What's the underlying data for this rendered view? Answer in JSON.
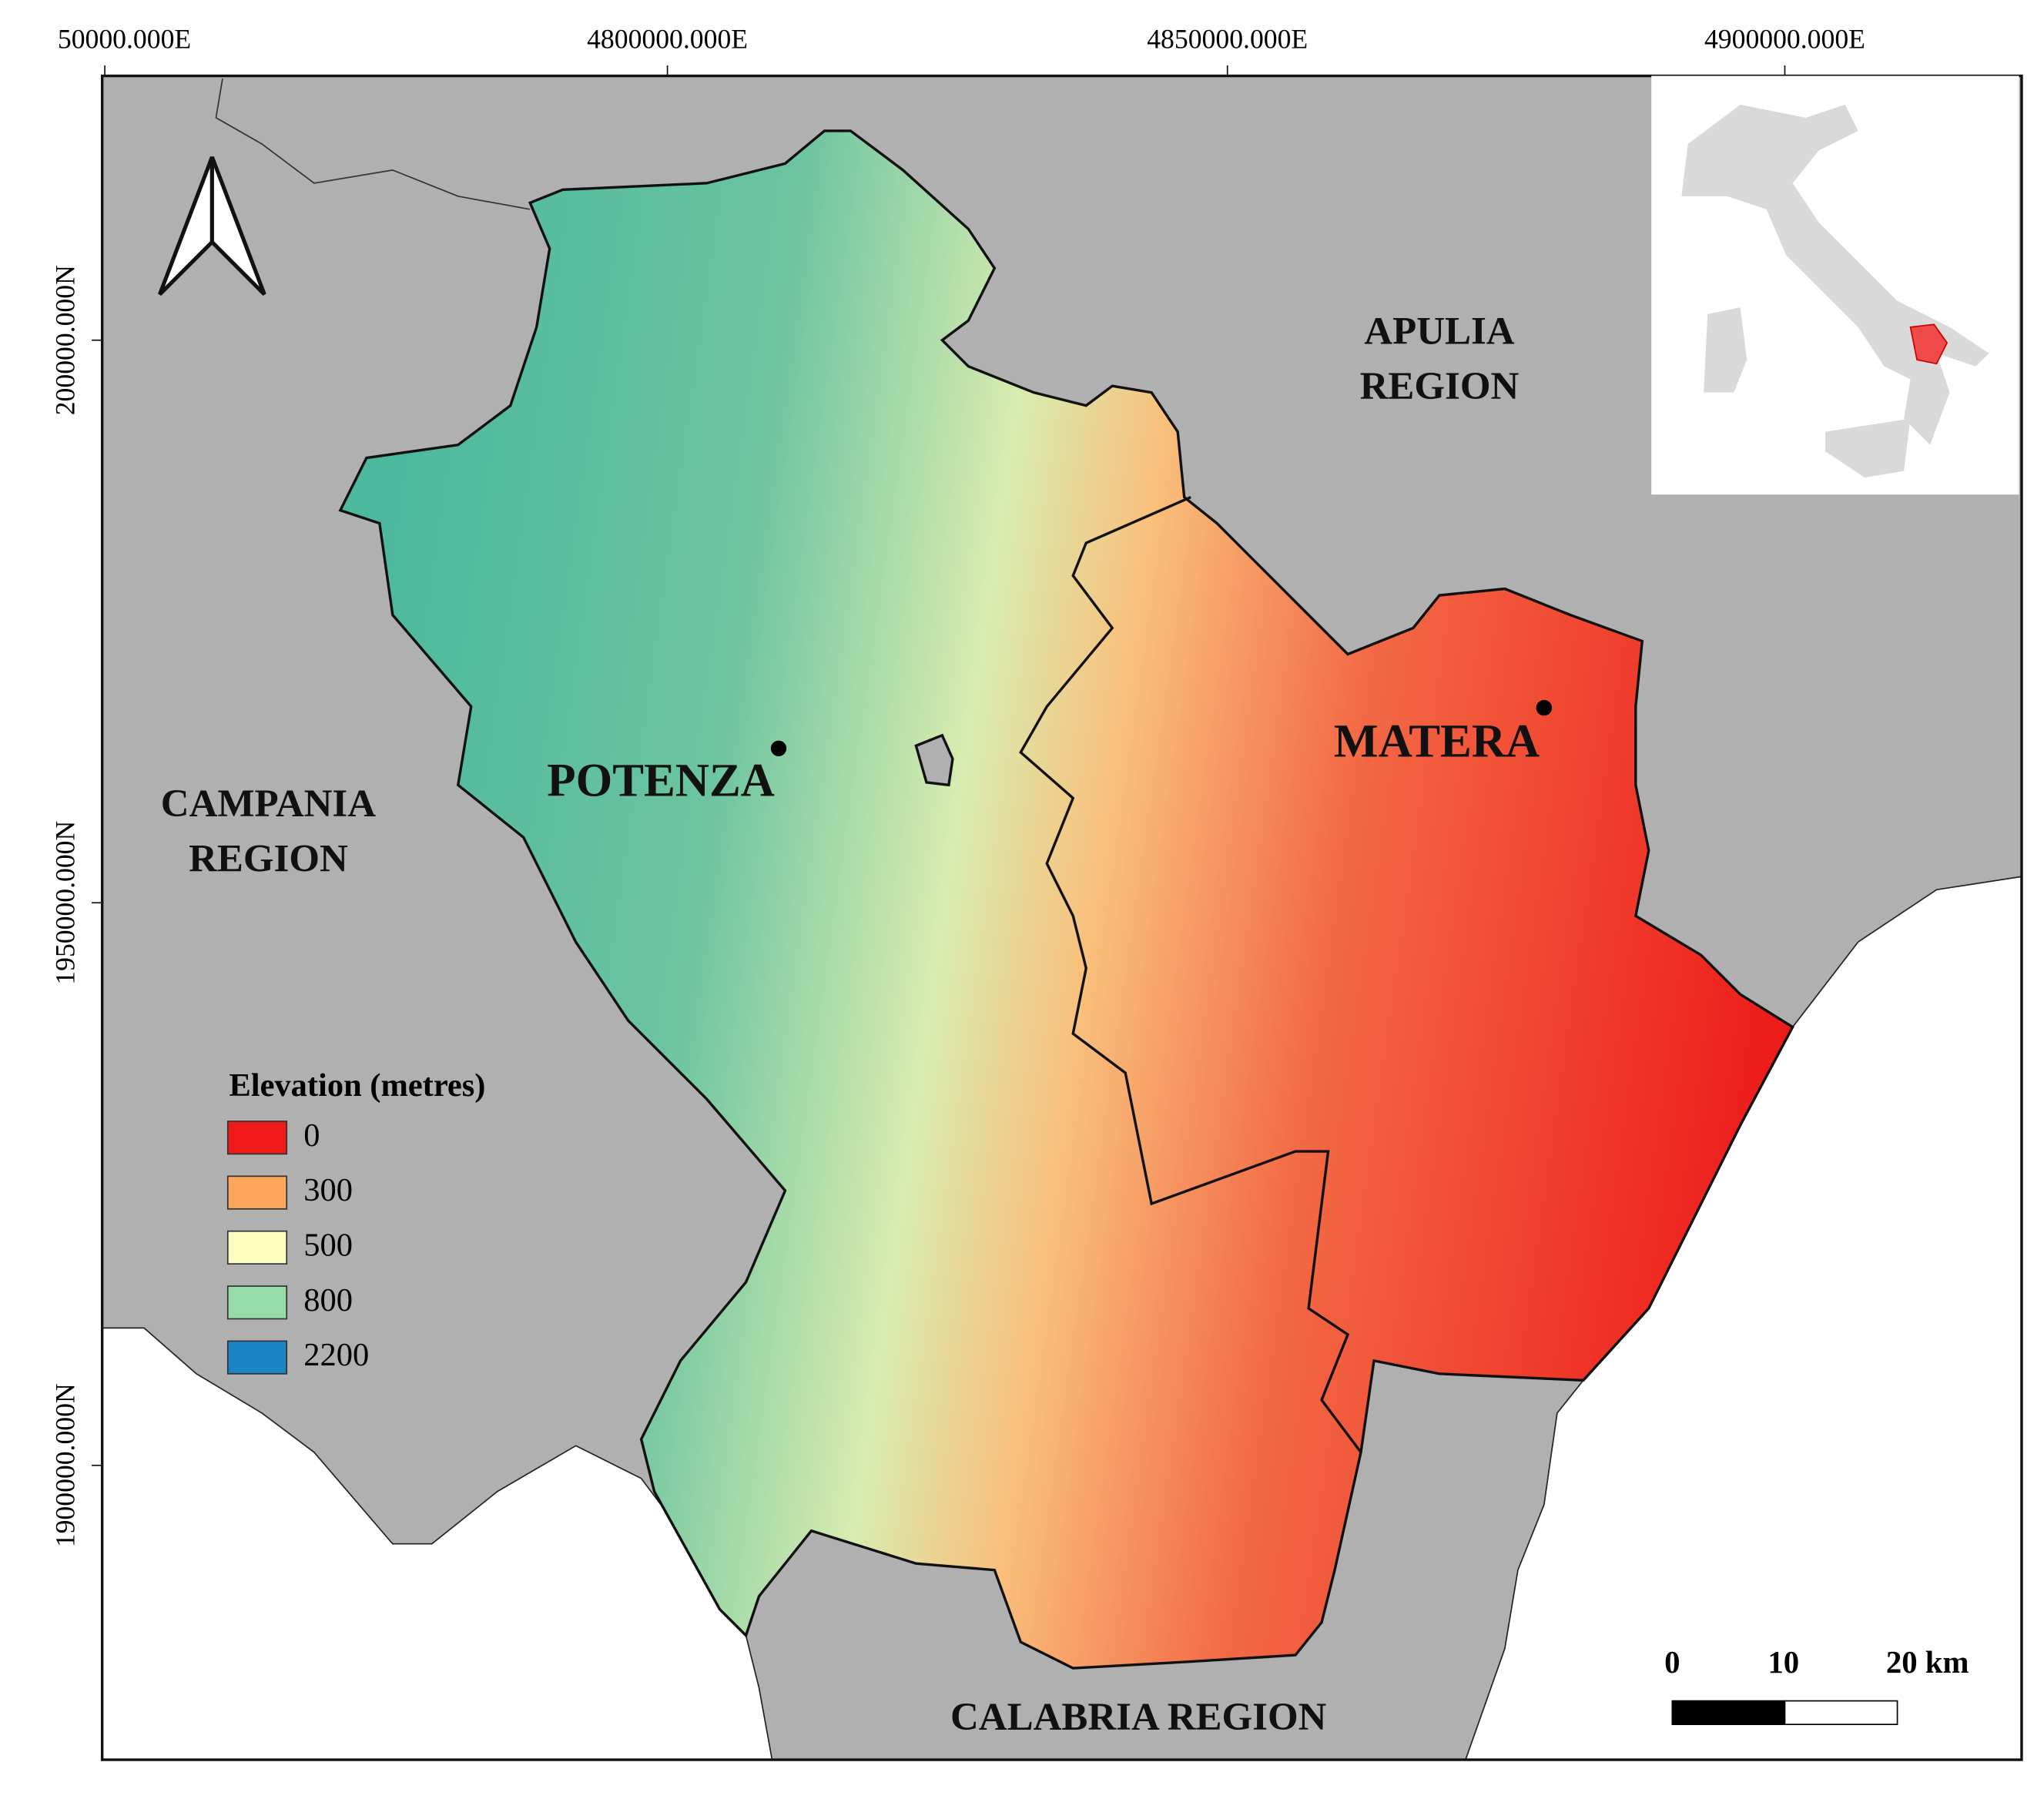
{
  "grid": {
    "top": [
      "50000.000E",
      "4800000.000E",
      "4850000.000E",
      "4900000.000E"
    ],
    "left": [
      "200000.000N",
      "1950000.000N",
      "1900000.000N"
    ]
  },
  "regions": [
    {
      "lines": [
        "APULIA",
        "REGION"
      ]
    },
    {
      "lines": [
        "CAMPANIA",
        "REGION"
      ]
    },
    {
      "lines": [
        "CALABRIA REGION"
      ]
    }
  ],
  "cities": [
    "POTENZA",
    "MATERA"
  ],
  "legend": {
    "title": "Elevation (metres)",
    "entries": [
      {
        "label": "0",
        "color": "#f01a1a"
      },
      {
        "label": "300",
        "color": "#fca75c"
      },
      {
        "label": "500",
        "color": "#fdfdc0"
      },
      {
        "label": "800",
        "color": "#96dca8"
      },
      {
        "label": "2200",
        "color": "#1b84c4"
      }
    ]
  },
  "scale_bar": {
    "labels": [
      "0",
      "10",
      "20 km"
    ]
  }
}
